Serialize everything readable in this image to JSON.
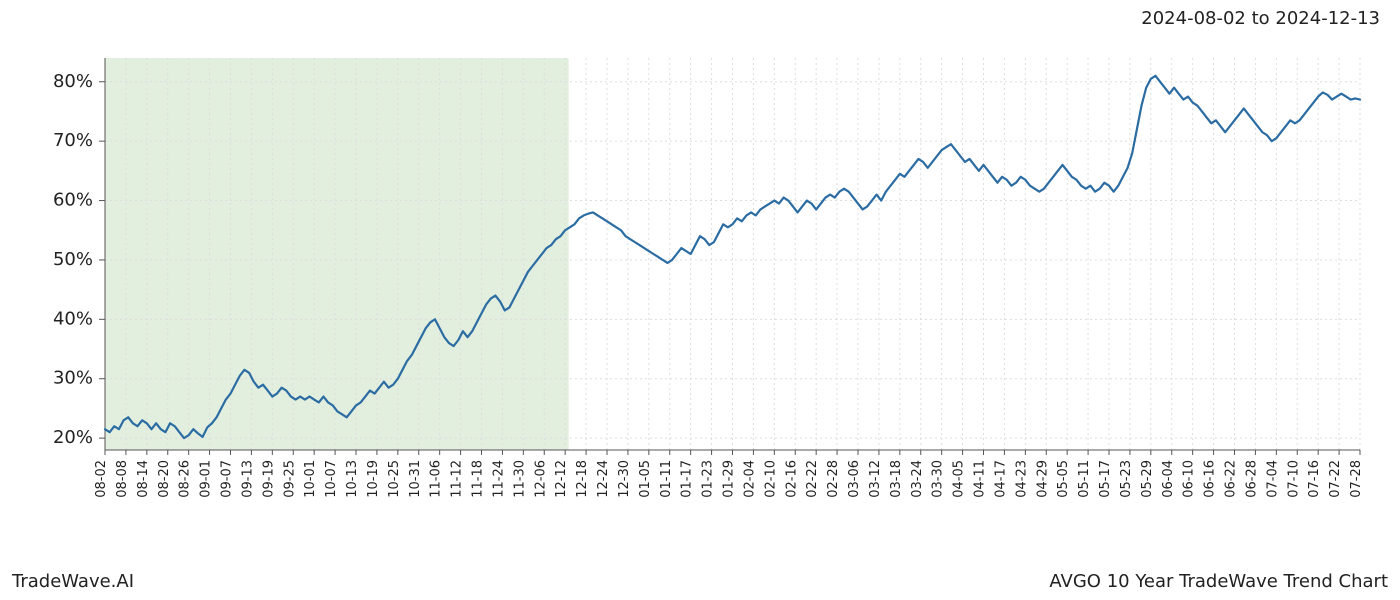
{
  "header": {
    "date_range": "2024-08-02 to 2024-12-13"
  },
  "footer": {
    "left": "TradeWave.AI",
    "right": "AVGO 10 Year TradeWave Trend Chart"
  },
  "chart": {
    "type": "line",
    "line_color": "#2b6ca3",
    "line_width": 2.2,
    "background_color": "#ffffff",
    "highlight_fill": "#d9ead3",
    "highlight_opacity": 0.75,
    "grid_color": "#dddddd",
    "grid_dash": "2,3",
    "axis_color": "#555555",
    "ytick_fontsize": 18,
    "xtick_fontsize": 13,
    "ylim": [
      18,
      84
    ],
    "yticks": [
      20,
      30,
      40,
      50,
      60,
      70,
      80
    ],
    "ytick_labels": [
      "20%",
      "30%",
      "40%",
      "50%",
      "60%",
      "70%",
      "80%"
    ],
    "xtick_labels": [
      "08-02",
      "08-08",
      "08-14",
      "08-20",
      "08-26",
      "09-01",
      "09-07",
      "09-13",
      "09-19",
      "09-25",
      "10-01",
      "10-07",
      "10-13",
      "10-19",
      "10-25",
      "10-31",
      "11-06",
      "11-12",
      "11-18",
      "11-24",
      "11-30",
      "12-06",
      "12-12",
      "12-18",
      "12-24",
      "12-30",
      "01-05",
      "01-11",
      "01-17",
      "01-23",
      "01-29",
      "02-04",
      "02-10",
      "02-16",
      "02-22",
      "02-28",
      "03-06",
      "03-12",
      "03-18",
      "03-24",
      "03-30",
      "04-05",
      "04-11",
      "04-17",
      "04-23",
      "04-29",
      "05-05",
      "05-11",
      "05-17",
      "05-23",
      "05-29",
      "06-04",
      "06-10",
      "06-16",
      "06-22",
      "06-28",
      "07-04",
      "07-10",
      "07-16",
      "07-22",
      "07-28"
    ],
    "highlight_range": {
      "start_label": "08-02",
      "end_label": "12-13"
    },
    "series": [
      21.5,
      21.0,
      22.0,
      21.5,
      23.0,
      23.5,
      22.5,
      22.0,
      23.0,
      22.5,
      21.5,
      22.5,
      21.5,
      21.0,
      22.5,
      22.0,
      21.0,
      20.0,
      20.5,
      21.5,
      20.8,
      20.2,
      21.8,
      22.5,
      23.5,
      25.0,
      26.5,
      27.5,
      29.0,
      30.5,
      31.5,
      31.0,
      29.5,
      28.5,
      29.0,
      28.0,
      27.0,
      27.5,
      28.5,
      28.0,
      27.0,
      26.5,
      27.0,
      26.5,
      27.0,
      26.5,
      26.0,
      27.0,
      26.0,
      25.5,
      24.5,
      24.0,
      23.5,
      24.5,
      25.5,
      26.0,
      27.0,
      28.0,
      27.5,
      28.5,
      29.5,
      28.5,
      29.0,
      30.0,
      31.5,
      33.0,
      34.0,
      35.5,
      37.0,
      38.5,
      39.5,
      40.0,
      38.5,
      37.0,
      36.0,
      35.5,
      36.5,
      38.0,
      37.0,
      38.0,
      39.5,
      41.0,
      42.5,
      43.5,
      44.0,
      43.0,
      41.5,
      42.0,
      43.5,
      45.0,
      46.5,
      48.0,
      49.0,
      50.0,
      51.0,
      52.0,
      52.5,
      53.5,
      54.0,
      55.0,
      55.5,
      56.0,
      57.0,
      57.5,
      57.8,
      58.0,
      57.5,
      57.0,
      56.5,
      56.0,
      55.5,
      55.0,
      54.0,
      53.5,
      53.0,
      52.5,
      52.0,
      51.5,
      51.0,
      50.5,
      50.0,
      49.5,
      50.0,
      51.0,
      52.0,
      51.5,
      51.0,
      52.5,
      54.0,
      53.5,
      52.5,
      53.0,
      54.5,
      56.0,
      55.5,
      56.0,
      57.0,
      56.5,
      57.5,
      58.0,
      57.5,
      58.5,
      59.0,
      59.5,
      60.0,
      59.5,
      60.5,
      60.0,
      59.0,
      58.0,
      59.0,
      60.0,
      59.5,
      58.5,
      59.5,
      60.5,
      61.0,
      60.5,
      61.5,
      62.0,
      61.5,
      60.5,
      59.5,
      58.5,
      59.0,
      60.0,
      61.0,
      60.0,
      61.5,
      62.5,
      63.5,
      64.5,
      64.0,
      65.0,
      66.0,
      67.0,
      66.5,
      65.5,
      66.5,
      67.5,
      68.5,
      69.0,
      69.5,
      68.5,
      67.5,
      66.5,
      67.0,
      66.0,
      65.0,
      66.0,
      65.0,
      64.0,
      63.0,
      64.0,
      63.5,
      62.5,
      63.0,
      64.0,
      63.5,
      62.5,
      62.0,
      61.5,
      62.0,
      63.0,
      64.0,
      65.0,
      66.0,
      65.0,
      64.0,
      63.5,
      62.5,
      62.0,
      62.5,
      61.5,
      62.0,
      63.0,
      62.5,
      61.5,
      62.5,
      64.0,
      65.5,
      68.0,
      72.0,
      76.0,
      79.0,
      80.5,
      81.0,
      80.0,
      79.0,
      78.0,
      79.0,
      78.0,
      77.0,
      77.5,
      76.5,
      76.0,
      75.0,
      74.0,
      73.0,
      73.5,
      72.5,
      71.5,
      72.5,
      73.5,
      74.5,
      75.5,
      74.5,
      73.5,
      72.5,
      71.5,
      71.0,
      70.0,
      70.5,
      71.5,
      72.5,
      73.5,
      73.0,
      73.5,
      74.5,
      75.5,
      76.5,
      77.5,
      78.2,
      77.8,
      77.0,
      77.5,
      78.0,
      77.5,
      77.0,
      77.2,
      77.0
    ]
  }
}
